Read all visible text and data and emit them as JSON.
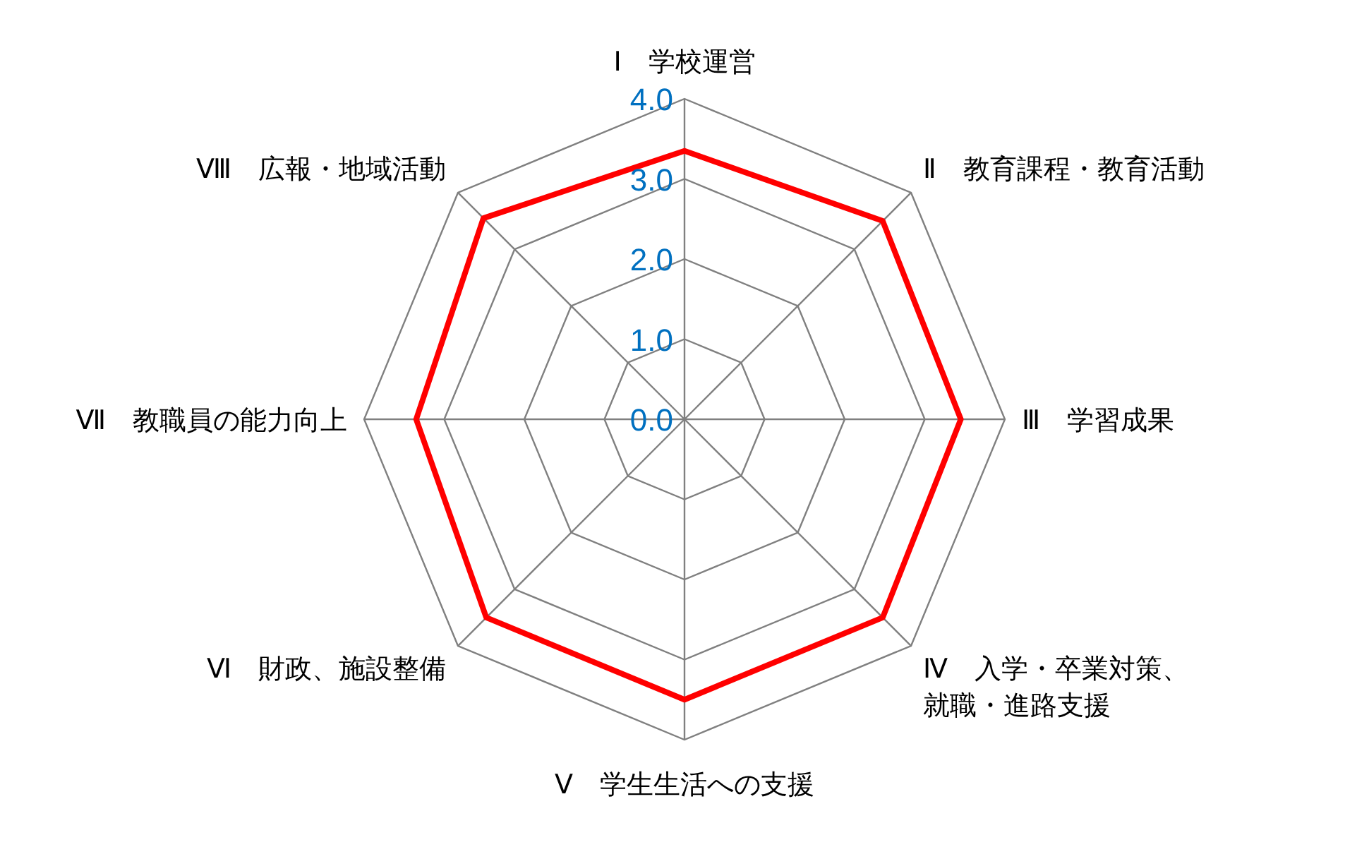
{
  "chart_data": {
    "type": "radar",
    "categories": [
      "Ⅰ　学校運営",
      "Ⅱ　教育課程・教育活動",
      "Ⅲ　学習成果",
      "Ⅳ　入学・卒業対策、就職・進路支援",
      "Ⅴ　学生生活への支援",
      "Ⅵ　財政、施設整備",
      "Ⅶ　教職員の能力向上",
      "Ⅷ　広報・地域活動"
    ],
    "series": [
      {
        "color": "#ff0000",
        "values": [
          3.35,
          3.5,
          3.45,
          3.5,
          3.5,
          3.5,
          3.35,
          3.55
        ]
      }
    ],
    "ylim": [
      0,
      4
    ],
    "yticks": [
      {
        "value": 0,
        "label": "0.0"
      },
      {
        "value": 1,
        "label": "1.0"
      },
      {
        "value": 2,
        "label": "2.0"
      },
      {
        "value": 3,
        "label": "3.0"
      },
      {
        "value": 4,
        "label": "4.0"
      }
    ],
    "grid": true
  }
}
